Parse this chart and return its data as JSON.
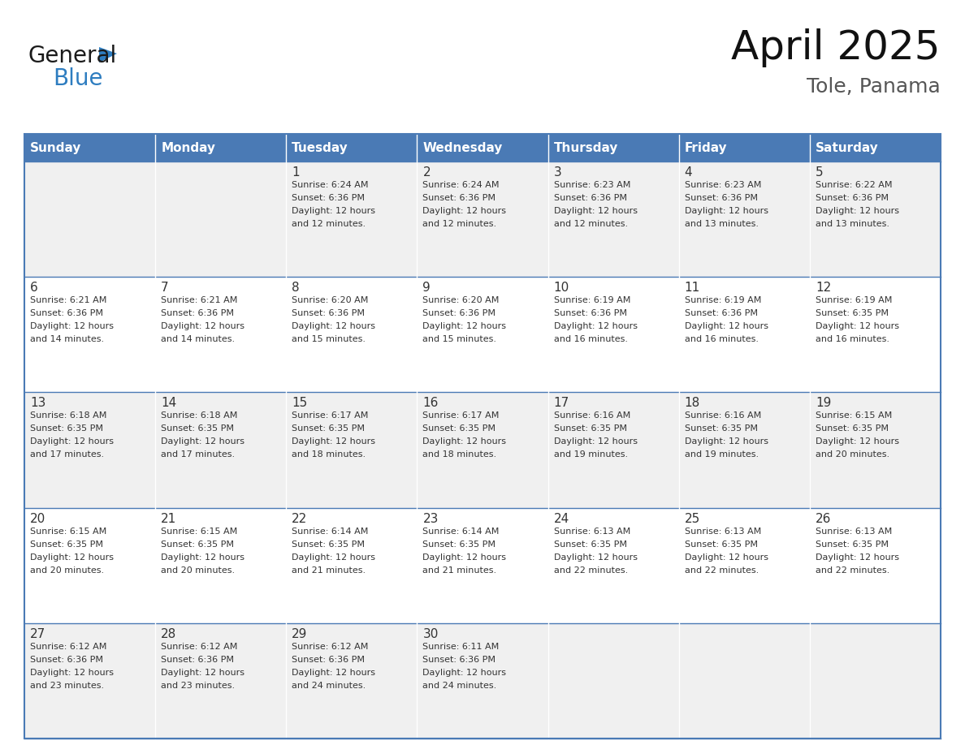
{
  "title": "April 2025",
  "subtitle": "Tole, Panama",
  "header_bg": "#4a7ab5",
  "header_text_color": "#ffffff",
  "row_bg_odd": "#f0f0f0",
  "row_bg_even": "#ffffff",
  "border_color": "#4a7ab5",
  "text_color": "#333333",
  "days_of_week": [
    "Sunday",
    "Monday",
    "Tuesday",
    "Wednesday",
    "Thursday",
    "Friday",
    "Saturday"
  ],
  "weeks": [
    [
      {
        "day": null,
        "info": null
      },
      {
        "day": null,
        "info": null
      },
      {
        "day": 1,
        "info": "Sunrise: 6:24 AM\nSunset: 6:36 PM\nDaylight: 12 hours\nand 12 minutes."
      },
      {
        "day": 2,
        "info": "Sunrise: 6:24 AM\nSunset: 6:36 PM\nDaylight: 12 hours\nand 12 minutes."
      },
      {
        "day": 3,
        "info": "Sunrise: 6:23 AM\nSunset: 6:36 PM\nDaylight: 12 hours\nand 12 minutes."
      },
      {
        "day": 4,
        "info": "Sunrise: 6:23 AM\nSunset: 6:36 PM\nDaylight: 12 hours\nand 13 minutes."
      },
      {
        "day": 5,
        "info": "Sunrise: 6:22 AM\nSunset: 6:36 PM\nDaylight: 12 hours\nand 13 minutes."
      }
    ],
    [
      {
        "day": 6,
        "info": "Sunrise: 6:21 AM\nSunset: 6:36 PM\nDaylight: 12 hours\nand 14 minutes."
      },
      {
        "day": 7,
        "info": "Sunrise: 6:21 AM\nSunset: 6:36 PM\nDaylight: 12 hours\nand 14 minutes."
      },
      {
        "day": 8,
        "info": "Sunrise: 6:20 AM\nSunset: 6:36 PM\nDaylight: 12 hours\nand 15 minutes."
      },
      {
        "day": 9,
        "info": "Sunrise: 6:20 AM\nSunset: 6:36 PM\nDaylight: 12 hours\nand 15 minutes."
      },
      {
        "day": 10,
        "info": "Sunrise: 6:19 AM\nSunset: 6:36 PM\nDaylight: 12 hours\nand 16 minutes."
      },
      {
        "day": 11,
        "info": "Sunrise: 6:19 AM\nSunset: 6:36 PM\nDaylight: 12 hours\nand 16 minutes."
      },
      {
        "day": 12,
        "info": "Sunrise: 6:19 AM\nSunset: 6:35 PM\nDaylight: 12 hours\nand 16 minutes."
      }
    ],
    [
      {
        "day": 13,
        "info": "Sunrise: 6:18 AM\nSunset: 6:35 PM\nDaylight: 12 hours\nand 17 minutes."
      },
      {
        "day": 14,
        "info": "Sunrise: 6:18 AM\nSunset: 6:35 PM\nDaylight: 12 hours\nand 17 minutes."
      },
      {
        "day": 15,
        "info": "Sunrise: 6:17 AM\nSunset: 6:35 PM\nDaylight: 12 hours\nand 18 minutes."
      },
      {
        "day": 16,
        "info": "Sunrise: 6:17 AM\nSunset: 6:35 PM\nDaylight: 12 hours\nand 18 minutes."
      },
      {
        "day": 17,
        "info": "Sunrise: 6:16 AM\nSunset: 6:35 PM\nDaylight: 12 hours\nand 19 minutes."
      },
      {
        "day": 18,
        "info": "Sunrise: 6:16 AM\nSunset: 6:35 PM\nDaylight: 12 hours\nand 19 minutes."
      },
      {
        "day": 19,
        "info": "Sunrise: 6:15 AM\nSunset: 6:35 PM\nDaylight: 12 hours\nand 20 minutes."
      }
    ],
    [
      {
        "day": 20,
        "info": "Sunrise: 6:15 AM\nSunset: 6:35 PM\nDaylight: 12 hours\nand 20 minutes."
      },
      {
        "day": 21,
        "info": "Sunrise: 6:15 AM\nSunset: 6:35 PM\nDaylight: 12 hours\nand 20 minutes."
      },
      {
        "day": 22,
        "info": "Sunrise: 6:14 AM\nSunset: 6:35 PM\nDaylight: 12 hours\nand 21 minutes."
      },
      {
        "day": 23,
        "info": "Sunrise: 6:14 AM\nSunset: 6:35 PM\nDaylight: 12 hours\nand 21 minutes."
      },
      {
        "day": 24,
        "info": "Sunrise: 6:13 AM\nSunset: 6:35 PM\nDaylight: 12 hours\nand 22 minutes."
      },
      {
        "day": 25,
        "info": "Sunrise: 6:13 AM\nSunset: 6:35 PM\nDaylight: 12 hours\nand 22 minutes."
      },
      {
        "day": 26,
        "info": "Sunrise: 6:13 AM\nSunset: 6:35 PM\nDaylight: 12 hours\nand 22 minutes."
      }
    ],
    [
      {
        "day": 27,
        "info": "Sunrise: 6:12 AM\nSunset: 6:36 PM\nDaylight: 12 hours\nand 23 minutes."
      },
      {
        "day": 28,
        "info": "Sunrise: 6:12 AM\nSunset: 6:36 PM\nDaylight: 12 hours\nand 23 minutes."
      },
      {
        "day": 29,
        "info": "Sunrise: 6:12 AM\nSunset: 6:36 PM\nDaylight: 12 hours\nand 24 minutes."
      },
      {
        "day": 30,
        "info": "Sunrise: 6:11 AM\nSunset: 6:36 PM\nDaylight: 12 hours\nand 24 minutes."
      },
      {
        "day": null,
        "info": null
      },
      {
        "day": null,
        "info": null
      },
      {
        "day": null,
        "info": null
      }
    ]
  ],
  "logo_general_color": "#1a1a1a",
  "logo_blue_color": "#2e7dc0",
  "logo_triangle_color": "#2e7dc0",
  "title_fontsize": 36,
  "subtitle_fontsize": 18,
  "header_fontsize": 11,
  "day_number_fontsize": 11,
  "cell_text_fontsize": 8
}
